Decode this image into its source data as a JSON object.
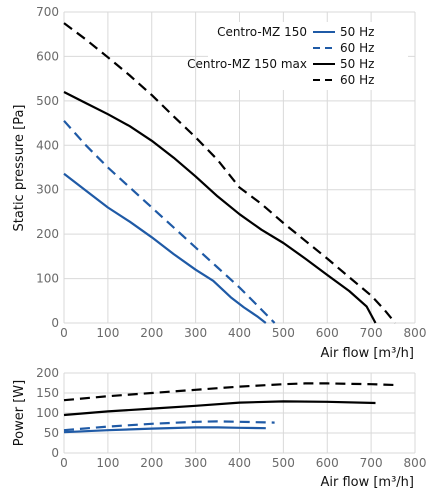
{
  "chart_data": [
    {
      "type": "line",
      "xlabel": "Air flow [m³/h]",
      "ylabel": "Static pressure [Pa]",
      "xlim": [
        0,
        800
      ],
      "ylim": [
        0,
        700
      ],
      "xticks": [
        0,
        100,
        200,
        300,
        400,
        500,
        600,
        700,
        800
      ],
      "yticks": [
        0,
        100,
        200,
        300,
        400,
        500,
        600,
        700
      ],
      "grid": true,
      "legend": {
        "placement": "top-right",
        "groups": [
          {
            "label": "Centro-MZ 150",
            "entries": [
              "50 Hz",
              "60 Hz"
            ]
          },
          {
            "label": "Centro-MZ 150 max",
            "entries": [
              "50 Hz",
              "60 Hz"
            ]
          }
        ]
      },
      "series": [
        {
          "id": "mz150-50",
          "color": "#1f5aa6",
          "dash": "solid",
          "points": [
            [
              0,
              336
            ],
            [
              50,
              298
            ],
            [
              100,
              260
            ],
            [
              150,
              228
            ],
            [
              200,
              193
            ],
            [
              250,
              155
            ],
            [
              300,
              120
            ],
            [
              340,
              95
            ],
            [
              380,
              58
            ],
            [
              410,
              35
            ],
            [
              440,
              15
            ],
            [
              460,
              0
            ]
          ]
        },
        {
          "id": "mz150-60",
          "color": "#1f5aa6",
          "dash": "dashed",
          "points": [
            [
              0,
              455
            ],
            [
              50,
              400
            ],
            [
              100,
              350
            ],
            [
              150,
              305
            ],
            [
              200,
              260
            ],
            [
              250,
              215
            ],
            [
              300,
              170
            ],
            [
              350,
              125
            ],
            [
              400,
              80
            ],
            [
              440,
              40
            ],
            [
              480,
              0
            ]
          ]
        },
        {
          "id": "mz150max-50",
          "color": "#000000",
          "dash": "solid",
          "points": [
            [
              0,
              520
            ],
            [
              50,
              495
            ],
            [
              100,
              470
            ],
            [
              150,
              443
            ],
            [
              200,
              410
            ],
            [
              250,
              372
            ],
            [
              300,
              330
            ],
            [
              350,
              285
            ],
            [
              400,
              245
            ],
            [
              450,
              210
            ],
            [
              500,
              180
            ],
            [
              550,
              145
            ],
            [
              600,
              108
            ],
            [
              650,
              72
            ],
            [
              690,
              37
            ],
            [
              710,
              0
            ]
          ]
        },
        {
          "id": "mz150max-60",
          "color": "#000000",
          "dash": "dashed",
          "points": [
            [
              0,
              675
            ],
            [
              50,
              638
            ],
            [
              100,
              598
            ],
            [
              150,
              557
            ],
            [
              200,
              513
            ],
            [
              250,
              465
            ],
            [
              300,
              418
            ],
            [
              350,
              367
            ],
            [
              400,
              305
            ],
            [
              450,
              268
            ],
            [
              500,
              225
            ],
            [
              550,
              185
            ],
            [
              600,
              145
            ],
            [
              650,
              103
            ],
            [
              700,
              62
            ],
            [
              730,
              30
            ],
            [
              755,
              0
            ]
          ]
        }
      ]
    },
    {
      "type": "line",
      "xlabel": "Air flow [m³/h]",
      "ylabel": "Power [W]",
      "xlim": [
        0,
        800
      ],
      "ylim": [
        0,
        200
      ],
      "xticks": [
        0,
        100,
        200,
        300,
        400,
        500,
        600,
        700,
        800
      ],
      "yticks": [
        0,
        50,
        100,
        150,
        200
      ],
      "grid": true,
      "series": [
        {
          "id": "mz150-50",
          "color": "#1f5aa6",
          "dash": "solid",
          "points": [
            [
              0,
              52
            ],
            [
              100,
              57
            ],
            [
              200,
              61
            ],
            [
              300,
              64
            ],
            [
              350,
              64
            ],
            [
              400,
              63
            ],
            [
              460,
              62
            ]
          ]
        },
        {
          "id": "mz150-60",
          "color": "#1f5aa6",
          "dash": "dashed",
          "points": [
            [
              0,
              57
            ],
            [
              100,
              66
            ],
            [
              200,
              73
            ],
            [
              300,
              78
            ],
            [
              350,
              79
            ],
            [
              400,
              78
            ],
            [
              480,
              76
            ]
          ]
        },
        {
          "id": "mz150max-50",
          "color": "#000000",
          "dash": "solid",
          "points": [
            [
              0,
              95
            ],
            [
              100,
              104
            ],
            [
              200,
              111
            ],
            [
              300,
              118
            ],
            [
              400,
              126
            ],
            [
              500,
              129
            ],
            [
              600,
              128
            ],
            [
              710,
              125
            ]
          ]
        },
        {
          "id": "mz150max-60",
          "color": "#000000",
          "dash": "dashed",
          "points": [
            [
              0,
              132
            ],
            [
              100,
              142
            ],
            [
              200,
              150
            ],
            [
              300,
              158
            ],
            [
              400,
              166
            ],
            [
              500,
              172
            ],
            [
              550,
              174
            ],
            [
              600,
              174
            ],
            [
              700,
              172
            ],
            [
              755,
              170
            ]
          ]
        }
      ]
    }
  ]
}
